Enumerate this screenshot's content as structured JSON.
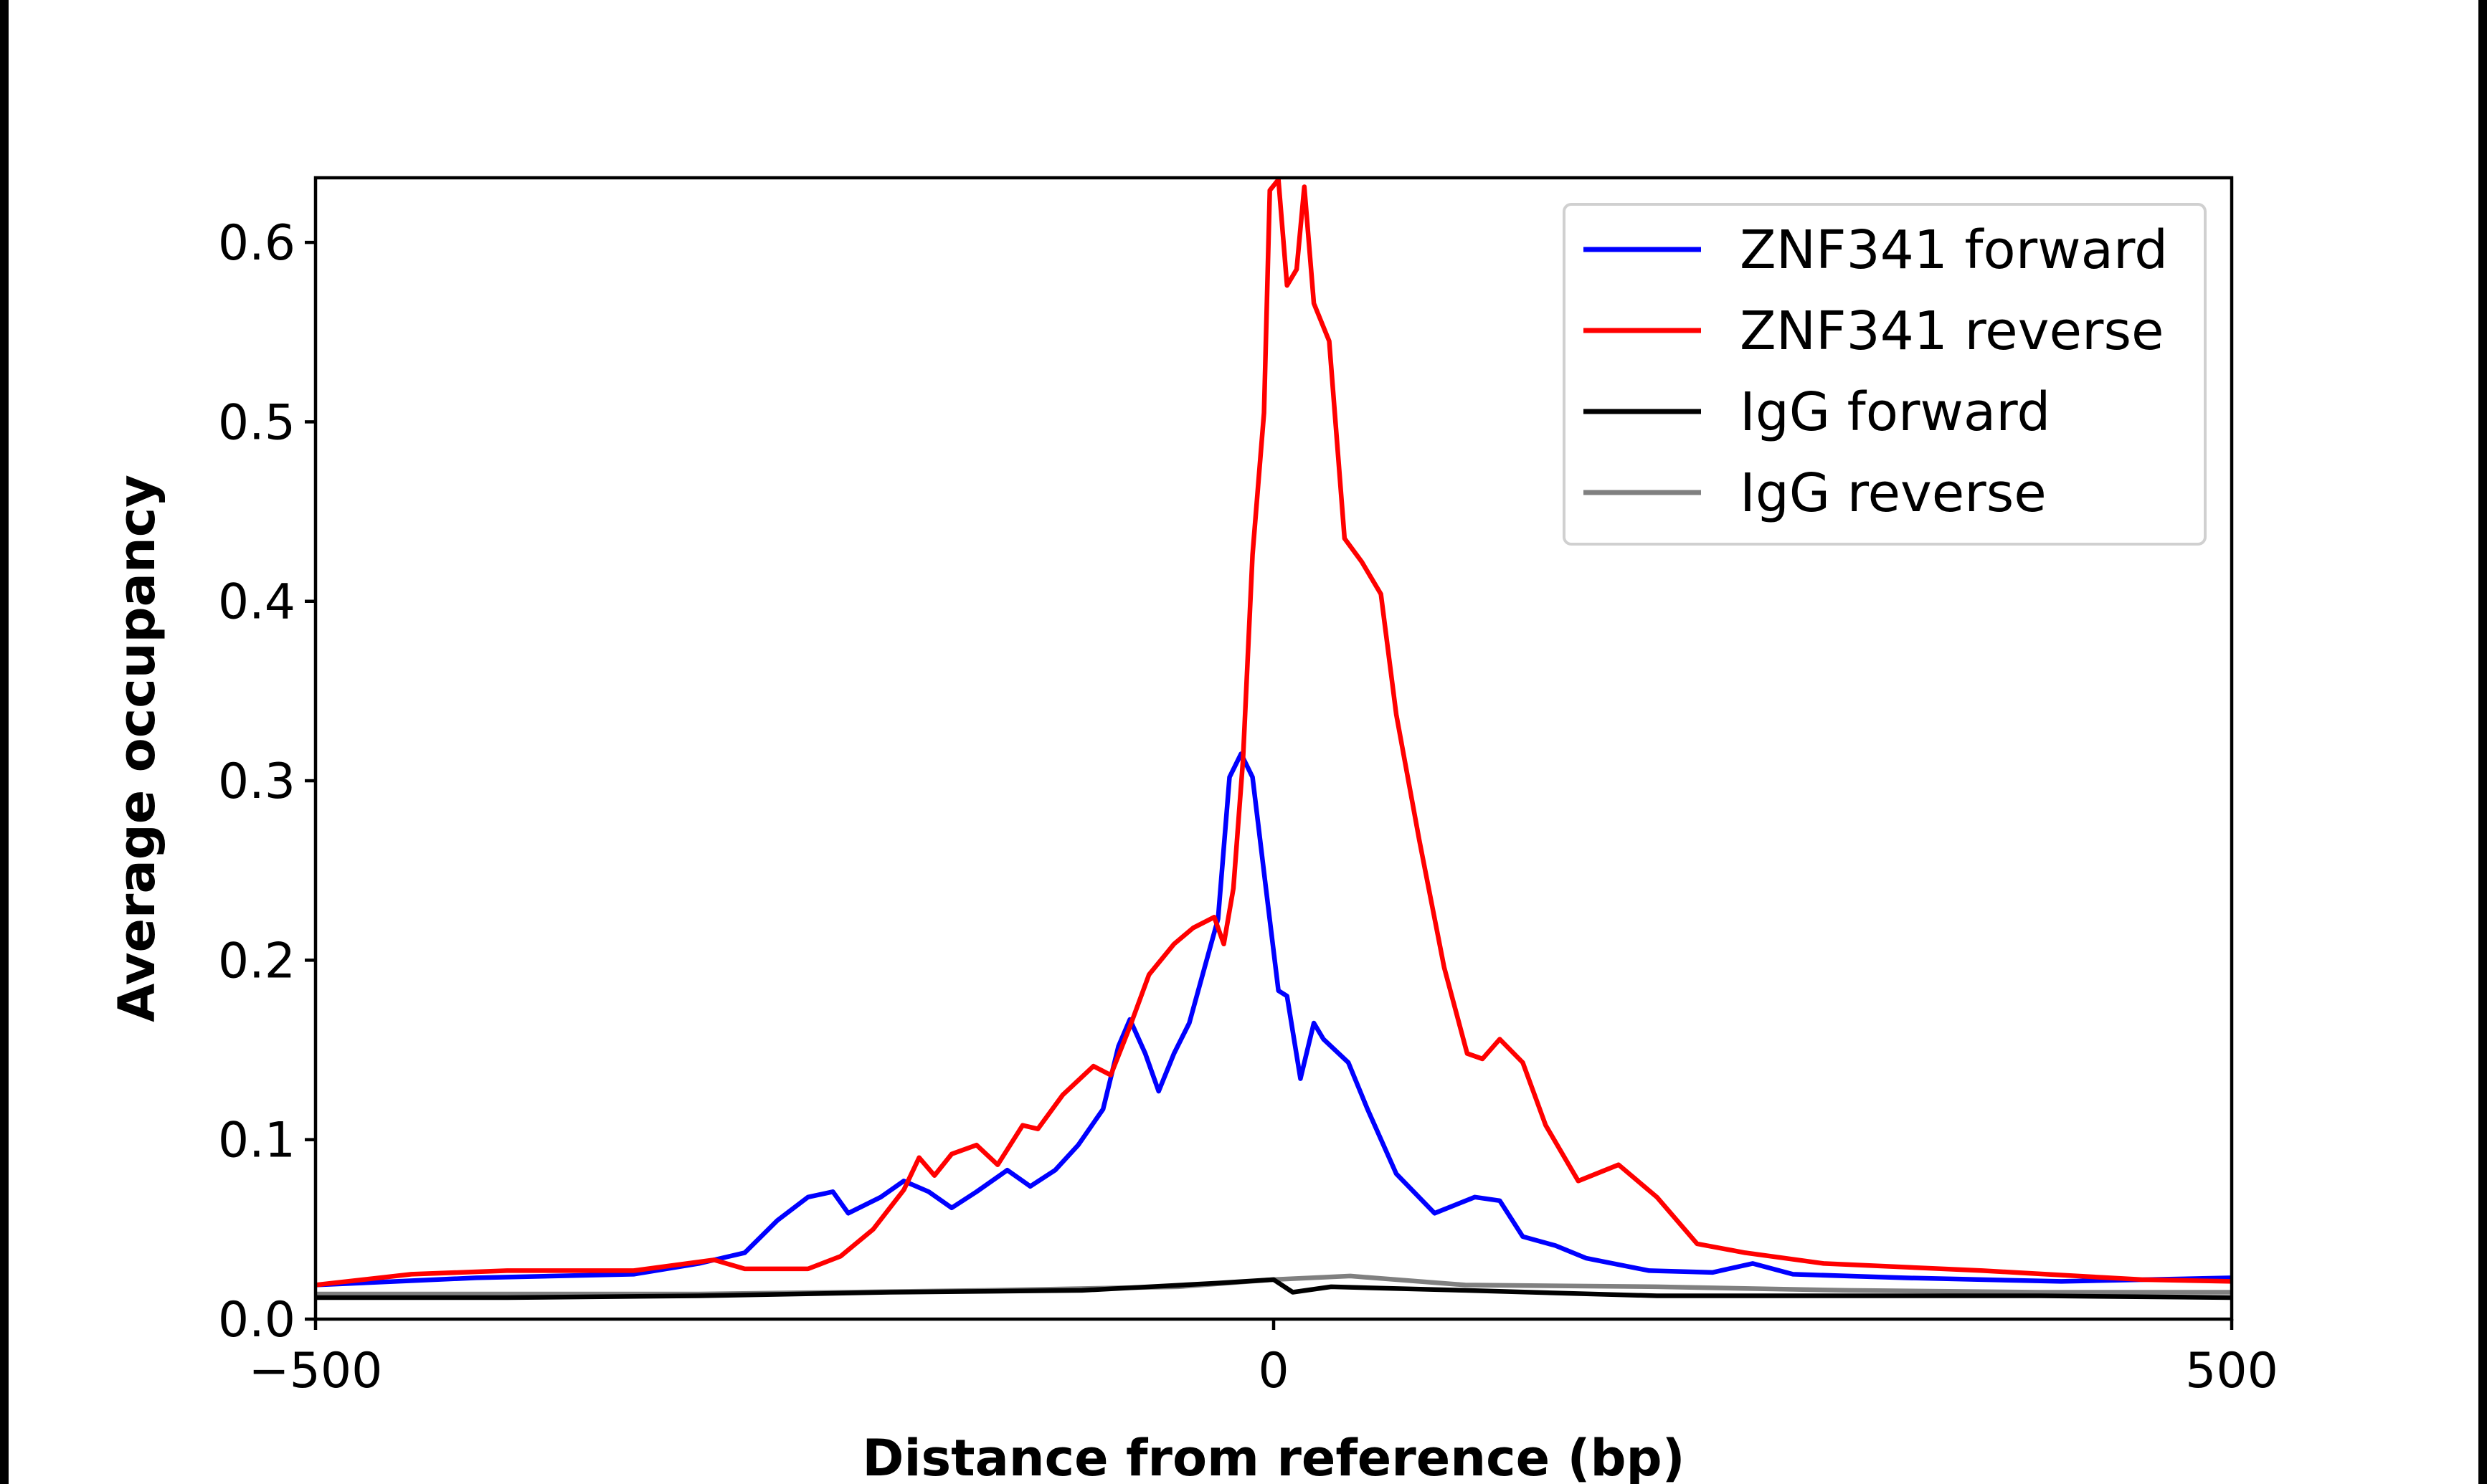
{
  "chart_data": {
    "type": "line",
    "title": "",
    "xlabel": "Distance from reference (bp)",
    "ylabel": "Average occupancy",
    "xlim": [
      -500,
      500
    ],
    "ylim": [
      0,
      0.636
    ],
    "xticks": [
      -500,
      0,
      500
    ],
    "xtick_labels": [
      "−500",
      "0",
      "500"
    ],
    "yticks": [
      0,
      0.1,
      0.2,
      0.3,
      0.4,
      0.5,
      0.6
    ],
    "ytick_labels": [
      "0.0",
      "0.1",
      "0.2",
      "0.3",
      "0.4",
      "0.5",
      "0.6"
    ],
    "grid": false,
    "legend_position": "top-right",
    "series": [
      {
        "name": "ZNF341 forward",
        "color": "#0000ff",
        "x": [
          -500,
          -416,
          -334,
          -300,
          -276,
          -259,
          -243,
          -230,
          -222,
          -205,
          -193,
          -180,
          -168,
          -155,
          -139,
          -127,
          -114,
          -102,
          -89,
          -81,
          -75,
          -67,
          -60,
          -52,
          -44,
          -36,
          -29,
          -23,
          -17,
          -11,
          -4,
          2.5,
          7,
          14,
          21,
          26,
          39,
          49,
          64,
          84,
          105,
          118,
          130,
          147,
          163,
          196,
          229,
          250,
          271,
          329,
          411,
          500
        ],
        "y": [
          0.019,
          0.023,
          0.025,
          0.031,
          0.037,
          0.055,
          0.068,
          0.071,
          0.059,
          0.068,
          0.077,
          0.071,
          0.062,
          0.071,
          0.083,
          0.074,
          0.083,
          0.097,
          0.117,
          0.152,
          0.167,
          0.148,
          0.127,
          0.148,
          0.165,
          0.196,
          0.223,
          0.302,
          0.315,
          0.302,
          0.24,
          0.183,
          0.18,
          0.134,
          0.165,
          0.156,
          0.143,
          0.117,
          0.081,
          0.059,
          0.068,
          0.066,
          0.046,
          0.041,
          0.034,
          0.027,
          0.026,
          0.031,
          0.025,
          0.023,
          0.021,
          0.023
        ]
      },
      {
        "name": "ZNF341 reverse",
        "color": "#ff0000",
        "x": [
          -500,
          -450,
          -400,
          -334,
          -292,
          -276,
          -243,
          -226,
          -209,
          -193,
          -185,
          -177,
          -168,
          -155,
          -144,
          -131,
          -123,
          -110,
          -94,
          -85,
          -75,
          -65,
          -52,
          -42,
          -31,
          -26,
          -21,
          -16,
          -11,
          -5,
          -2,
          2.5,
          7,
          12,
          16,
          21,
          29,
          37,
          46,
          56,
          64,
          76,
          89,
          101,
          109,
          118,
          130,
          142,
          159,
          180,
          200,
          221,
          246,
          287,
          370,
          453,
          500
        ],
        "y": [
          0.019,
          0.025,
          0.027,
          0.027,
          0.033,
          0.028,
          0.028,
          0.035,
          0.05,
          0.072,
          0.09,
          0.08,
          0.092,
          0.097,
          0.086,
          0.108,
          0.106,
          0.125,
          0.141,
          0.136,
          0.163,
          0.192,
          0.209,
          0.218,
          0.224,
          0.209,
          0.24,
          0.311,
          0.426,
          0.505,
          0.629,
          0.635,
          0.576,
          0.585,
          0.631,
          0.566,
          0.545,
          0.435,
          0.422,
          0.404,
          0.337,
          0.267,
          0.196,
          0.148,
          0.145,
          0.156,
          0.143,
          0.108,
          0.077,
          0.086,
          0.068,
          0.042,
          0.037,
          0.031,
          0.027,
          0.022,
          0.021
        ]
      },
      {
        "name": "IgG forward",
        "color": "#000000",
        "x": [
          -500,
          -400,
          -300,
          -200,
          -100,
          -30,
          0,
          10,
          30,
          100,
          200,
          300,
          400,
          500
        ],
        "y": [
          0.012,
          0.012,
          0.013,
          0.015,
          0.016,
          0.02,
          0.022,
          0.015,
          0.018,
          0.016,
          0.013,
          0.013,
          0.013,
          0.012
        ]
      },
      {
        "name": "IgG reverse",
        "color": "#808080",
        "x": [
          -500,
          -400,
          -300,
          -150,
          -50,
          0,
          40,
          100,
          200,
          300,
          400,
          500
        ],
        "y": [
          0.014,
          0.014,
          0.014,
          0.016,
          0.018,
          0.022,
          0.024,
          0.019,
          0.018,
          0.016,
          0.015,
          0.015
        ]
      }
    ]
  }
}
